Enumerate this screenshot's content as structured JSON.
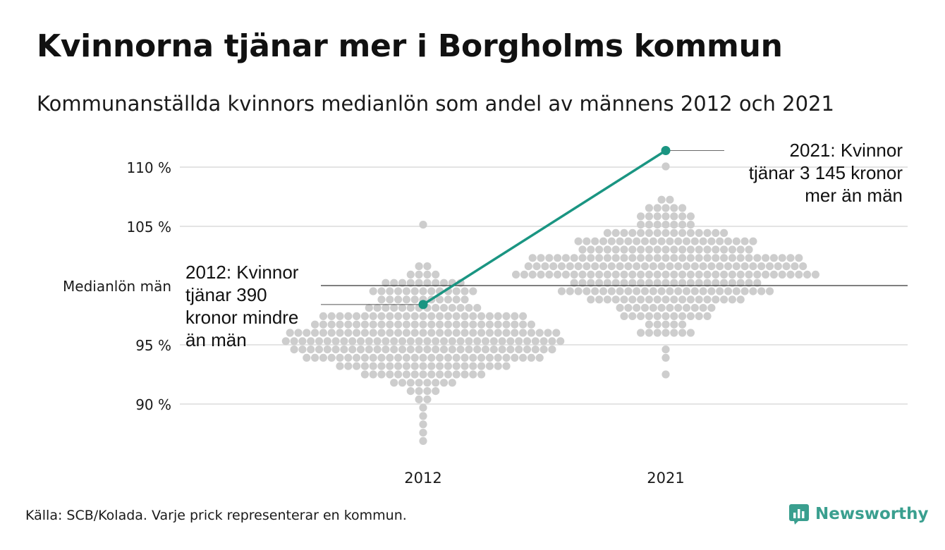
{
  "title": "Kvinnorna tjänar mer i Borgholms kommun",
  "subtitle": "Kommunanställda kvinnors medianlön som andel av männens 2012 och 2021",
  "source": "Källa: SCB/Kolada. Varje prick representerar en kommun.",
  "brand": "Newsworthy",
  "colors": {
    "highlight": "#1a9582",
    "dots": "#cdcdcd",
    "grid": "#e4e4e4",
    "reference_line": "#333333",
    "brand": "#3a9f8f"
  },
  "chart_data": {
    "type": "scatter",
    "categories": [
      "2012",
      "2021"
    ],
    "y_ticks": [
      {
        "value": 110,
        "label": "110 %"
      },
      {
        "value": 105,
        "label": "105 %"
      },
      {
        "value": 95,
        "label": "95 %"
      },
      {
        "value": 90,
        "label": "90 %"
      }
    ],
    "reference": {
      "value": 100,
      "label": "Medianlön män"
    },
    "ylim": [
      86,
      113
    ],
    "grid": true,
    "distributions": [
      {
        "category": "2012",
        "min": 86.6,
        "max": 105.3,
        "center": 95.5,
        "spread": 2.6
      },
      {
        "category": "2021",
        "min": 92.6,
        "max": 110.4,
        "center": 101.2,
        "spread": 2.4
      }
    ],
    "highlight": {
      "name": "Borgholm",
      "points": [
        {
          "x": "2012",
          "y": 98.4
        },
        {
          "x": "2021",
          "y": 111.4
        }
      ]
    },
    "annotations": [
      {
        "x": "2012",
        "y": 98.4,
        "lines": [
          "2012: Kvinnor",
          "tjänar 390",
          "kronor mindre",
          "än män"
        ]
      },
      {
        "x": "2021",
        "y": 111.4,
        "lines": [
          "2021: Kvinnor",
          "tjänar 3 145 kronor",
          "mer än män"
        ]
      }
    ]
  }
}
